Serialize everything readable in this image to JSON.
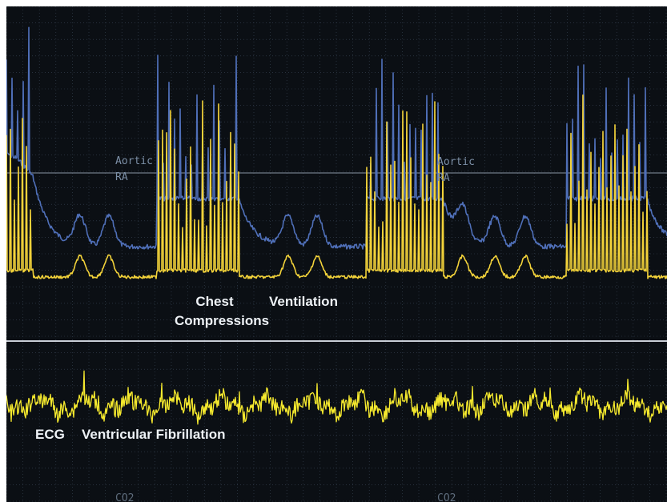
{
  "labels": {
    "chest": "Chest",
    "compressions": "Compressions",
    "ventilation": "Ventilation",
    "ecg": "ECG",
    "vf": "Ventricular Fibrillation",
    "aortic_1": "Aortic",
    "ra_1": "RA",
    "aortic_2": "Aortic",
    "ra_2": "RA",
    "co_1": "CO2",
    "co_2": "CO2"
  },
  "colors": {
    "background": "#0b0f14",
    "grid": "#3a4656",
    "aortic_trace": "#4f6fb8",
    "ra_trace": "#f2d23a",
    "ecg_trace": "#f5e92e",
    "divider": "#c9ced6"
  }
}
